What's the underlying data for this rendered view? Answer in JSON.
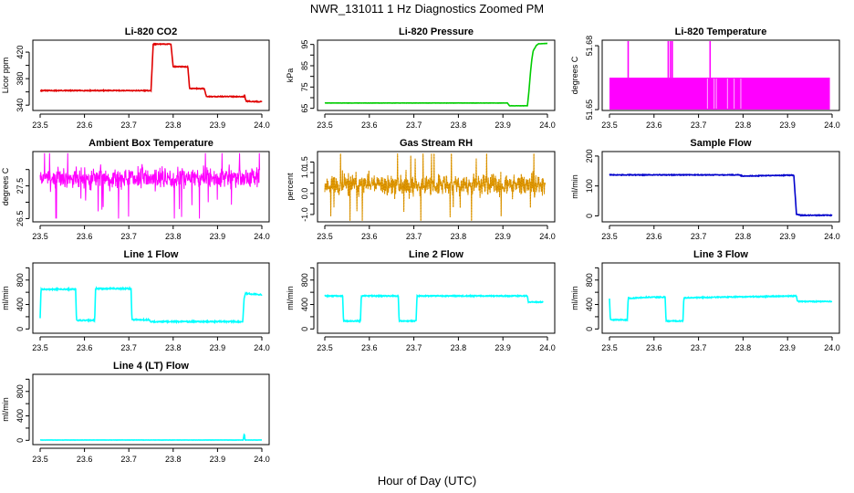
{
  "page": {
    "title": "NWR_131011  1 Hz Diagnostics Zoomed PM",
    "xlabel": "Hour of Day (UTC)"
  },
  "colors": {
    "red": "#e00000",
    "green": "#00cc00",
    "magenta": "#ff00ff",
    "orange": "#e69f00",
    "blue": "#0000cc",
    "cyan": "#00ffff",
    "axis": "#000000"
  },
  "chart_data": [
    {
      "id": "co2",
      "type": "line",
      "title": "Li-820 CO2",
      "ylabel": "Licor ppm",
      "color": "red",
      "xlim": [
        23.5,
        24.0
      ],
      "ylim": [
        332,
        438
      ],
      "yticks": [
        340,
        360,
        380,
        400,
        420
      ],
      "ytick_labels": [
        "340",
        "",
        "380",
        "",
        "420"
      ],
      "xticks": [
        23.5,
        23.6,
        23.7,
        23.8,
        23.9,
        24.0
      ],
      "xtick_labels": [
        "23.5",
        "23.6",
        "23.7",
        "23.8",
        "23.9",
        "24.0"
      ],
      "series": [
        {
          "name": "CO2",
          "style": "step",
          "noise": 0.6,
          "x": [
            23.5,
            23.75,
            23.755,
            23.795,
            23.8,
            23.833,
            23.837,
            23.87,
            23.875,
            23.96,
            23.9605,
            23.963,
            23.965,
            24.0
          ],
          "y": [
            362,
            362,
            432,
            432,
            398,
            398,
            365,
            365,
            353,
            353,
            357,
            349,
            346,
            345
          ]
        }
      ]
    },
    {
      "id": "pressure",
      "type": "line",
      "title": "Li-820 Pressure",
      "ylabel": "kPa",
      "color": "green",
      "xlim": [
        23.5,
        24.0
      ],
      "ylim": [
        64,
        97
      ],
      "yticks": [
        65,
        70,
        75,
        80,
        85,
        90,
        95
      ],
      "ytick_labels": [
        "65",
        "",
        "75",
        "",
        "85",
        "",
        "95"
      ],
      "xticks": [
        23.5,
        23.6,
        23.7,
        23.8,
        23.9,
        24.0
      ],
      "xtick_labels": [
        "23.5",
        "23.6",
        "23.7",
        "23.8",
        "23.9",
        "24.0"
      ],
      "series": [
        {
          "name": "Pressure",
          "style": "line",
          "noise": 0.05,
          "x": [
            23.5,
            23.91,
            23.915,
            23.955,
            23.958,
            23.962,
            23.965,
            23.968,
            23.975,
            23.98,
            24.0
          ],
          "y": [
            67.5,
            67.5,
            66.2,
            66.2,
            72,
            82,
            88,
            92,
            94.5,
            95.3,
            95.5
          ]
        }
      ]
    },
    {
      "id": "licor_temp",
      "type": "band",
      "title": "Li-820 Temperature",
      "ylabel": "degrees C",
      "color": "magenta",
      "xlim": [
        23.5,
        24.0
      ],
      "ylim": [
        51.6496,
        51.6826
      ],
      "yticks": [
        51.65,
        51.68
      ],
      "ytick_labels": [
        "51.65",
        "51.68"
      ],
      "xticks": [
        23.5,
        23.6,
        23.7,
        23.8,
        23.9,
        24.0
      ],
      "xtick_labels": [
        "23.5",
        "23.6",
        "23.7",
        "23.8",
        "23.9",
        "24.0"
      ],
      "band": {
        "x": [
          23.5,
          23.995
        ],
        "y": [
          51.65,
          51.665
        ]
      },
      "spikes": [
        {
          "x": 23.542,
          "y": 51.6826
        },
        {
          "x": 23.632,
          "y": 51.6826
        },
        {
          "x": 23.637,
          "y": 51.6826
        },
        {
          "x": 23.641,
          "y": 51.6826
        },
        {
          "x": 23.726,
          "y": 51.6826
        }
      ],
      "gaps": [
        23.72,
        23.735,
        23.74,
        23.765,
        23.78,
        23.795
      ]
    },
    {
      "id": "box_temp",
      "type": "noise",
      "title": "Ambient Box Temperature",
      "ylabel": "degrees C",
      "color": "magenta",
      "xlim": [
        23.5,
        24.0
      ],
      "ylim": [
        26.4,
        28.55
      ],
      "yticks": [
        26.5,
        27.0,
        27.5,
        28.0
      ],
      "ytick_labels": [
        "26.5",
        "",
        "27.5",
        ""
      ],
      "xticks": [
        23.5,
        23.6,
        23.7,
        23.8,
        23.9,
        24.0
      ],
      "xtick_labels": [
        "23.5",
        "23.6",
        "23.7",
        "23.8",
        "23.9",
        "24.0"
      ],
      "noise": {
        "x0": 23.5,
        "x1": 23.995,
        "center": 27.75,
        "spread": 0.35,
        "min": 26.5,
        "max": 28.5,
        "seed": 7
      }
    },
    {
      "id": "rh",
      "type": "noise",
      "title": "Gas Stream RH",
      "ylabel": "percent",
      "color": "orange",
      "xlim": [
        23.5,
        24.0
      ],
      "ylim": [
        -1.35,
        2.0
      ],
      "yticks": [
        -1.0,
        -0.5,
        0.0,
        0.5,
        1.0,
        1.5
      ],
      "ytick_labels": [
        "-1.0",
        "",
        "0.0",
        "",
        "1.0",
        "1.5"
      ],
      "xticks": [
        23.5,
        23.6,
        23.7,
        23.8,
        23.9,
        24.0
      ],
      "xtick_labels": [
        "23.5",
        "23.6",
        "23.7",
        "23.8",
        "23.9",
        "24.0"
      ],
      "noise": {
        "x0": 23.5,
        "x1": 23.995,
        "center": 0.4,
        "spread": 0.55,
        "min": -1.3,
        "max": 1.9,
        "seed": 11
      }
    },
    {
      "id": "sample_flow",
      "type": "line",
      "title": "Sample Flow",
      "ylabel": "ml/min",
      "color": "blue",
      "xlim": [
        23.5,
        24.0
      ],
      "ylim": [
        -20,
        215
      ],
      "yticks": [
        0,
        100,
        200
      ],
      "ytick_labels": [
        "0",
        "100",
        "200"
      ],
      "xticks": [
        23.5,
        23.6,
        23.7,
        23.8,
        23.9,
        24.0
      ],
      "xtick_labels": [
        "23.5",
        "23.6",
        "23.7",
        "23.8",
        "23.9",
        "24.0"
      ],
      "series": [
        {
          "name": "Sample Flow",
          "style": "line",
          "noise": 1.2,
          "x": [
            23.5,
            23.79,
            23.8,
            23.91,
            23.914,
            23.92,
            23.93,
            24.0
          ],
          "y": [
            137,
            137,
            133,
            136,
            136,
            5,
            2,
            2
          ]
        }
      ]
    },
    {
      "id": "line1",
      "type": "line",
      "title": "Line 1 Flow",
      "ylabel": "ml/min",
      "color": "cyan",
      "xlim": [
        23.5,
        24.0
      ],
      "ylim": [
        -70,
        1080
      ],
      "yticks": [
        0,
        200,
        400,
        600,
        800,
        1000
      ],
      "ytick_labels": [
        "0",
        "",
        "400",
        "",
        "800",
        ""
      ],
      "xticks": [
        23.5,
        23.6,
        23.7,
        23.8,
        23.9,
        24.0
      ],
      "xtick_labels": [
        "23.5",
        "23.6",
        "23.7",
        "23.8",
        "23.9",
        "24.0"
      ],
      "series": [
        {
          "name": "Line 1",
          "style": "step",
          "noise": 10,
          "x": [
            23.5,
            23.502,
            23.58,
            23.582,
            23.623,
            23.625,
            23.705,
            23.707,
            23.745,
            23.75,
            23.957,
            23.96,
            23.963,
            24.0
          ],
          "y": [
            180,
            650,
            650,
            140,
            140,
            660,
            660,
            150,
            150,
            120,
            120,
            500,
            580,
            560
          ]
        }
      ]
    },
    {
      "id": "line2",
      "type": "line",
      "title": "Line 2 Flow",
      "ylabel": "ml/min",
      "color": "cyan",
      "xlim": [
        23.5,
        24.0
      ],
      "ylim": [
        -70,
        1080
      ],
      "yticks": [
        0,
        200,
        400,
        600,
        800,
        1000
      ],
      "ytick_labels": [
        "0",
        "",
        "400",
        "",
        "800",
        ""
      ],
      "xticks": [
        23.5,
        23.6,
        23.7,
        23.8,
        23.9,
        24.0
      ],
      "xtick_labels": [
        "23.5",
        "23.6",
        "23.7",
        "23.8",
        "23.9",
        "24.0"
      ],
      "series": [
        {
          "name": "Line 2",
          "style": "step",
          "noise": 8,
          "x": [
            23.5,
            23.54,
            23.542,
            23.58,
            23.582,
            23.665,
            23.667,
            23.705,
            23.707,
            23.955,
            23.957,
            23.99
          ],
          "y": [
            540,
            540,
            130,
            130,
            540,
            540,
            130,
            130,
            540,
            540,
            440,
            440
          ]
        }
      ]
    },
    {
      "id": "line3",
      "type": "line",
      "title": "Line 3 Flow",
      "ylabel": "ml/min",
      "color": "cyan",
      "xlim": [
        23.5,
        24.0
      ],
      "ylim": [
        -70,
        1080
      ],
      "yticks": [
        0,
        200,
        400,
        600,
        800,
        1000
      ],
      "ytick_labels": [
        "0",
        "",
        "400",
        "",
        "800",
        ""
      ],
      "xticks": [
        23.5,
        23.6,
        23.7,
        23.8,
        23.9,
        24.0
      ],
      "xtick_labels": [
        "23.5",
        "23.6",
        "23.7",
        "23.8",
        "23.9",
        "24.0"
      ],
      "series": [
        {
          "name": "Line 3",
          "style": "step",
          "noise": 8,
          "x": [
            23.5,
            23.502,
            23.54,
            23.542,
            23.585,
            23.625,
            23.627,
            23.665,
            23.667,
            23.92,
            23.922,
            24.0
          ],
          "y": [
            500,
            150,
            150,
            500,
            520,
            520,
            130,
            130,
            510,
            540,
            450,
            450
          ]
        }
      ]
    },
    {
      "id": "line4",
      "type": "line",
      "title": "Line 4 (LT) Flow",
      "ylabel": "ml/min",
      "color": "cyan",
      "xlim": [
        23.5,
        24.0
      ],
      "ylim": [
        -70,
        1080
      ],
      "yticks": [
        0,
        200,
        400,
        600,
        800,
        1000
      ],
      "ytick_labels": [
        "0",
        "",
        "400",
        "",
        "800",
        ""
      ],
      "xticks": [
        23.5,
        23.6,
        23.7,
        23.8,
        23.9,
        24.0
      ],
      "xtick_labels": [
        "23.5",
        "23.6",
        "23.7",
        "23.8",
        "23.9",
        "24.0"
      ],
      "series": [
        {
          "name": "Line 4",
          "style": "step",
          "noise": 1,
          "x": [
            23.5,
            23.958,
            23.959,
            23.9605,
            23.962,
            24.0
          ],
          "y": [
            5,
            5,
            60,
            110,
            5,
            5
          ]
        }
      ]
    }
  ]
}
